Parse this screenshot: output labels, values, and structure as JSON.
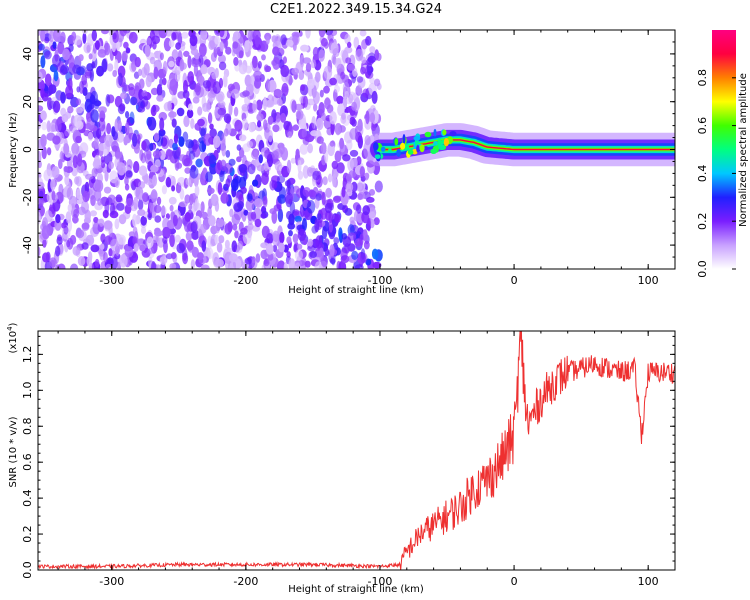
{
  "title": "C2E1.2022.349.15.34.G24",
  "chart_data": [
    {
      "type": "heatmap",
      "xlabel": "Height of straight line (km)",
      "ylabel": "Frequency (Hz)",
      "xlim": [
        -355,
        120
      ],
      "ylim": [
        -50,
        50
      ],
      "x_ticks": [
        -300,
        -200,
        -100,
        0,
        100
      ],
      "y_ticks": [
        -40,
        -20,
        0,
        20,
        40
      ],
      "x_tick_labels": [
        "-300",
        "-200",
        "-100",
        "0",
        "100"
      ],
      "y_tick_labels": [
        "-40",
        "-20",
        "0",
        "20",
        "40"
      ],
      "grid": false,
      "colorbar": {
        "label": "Normalized spectral amplitude",
        "range": [
          0,
          1
        ],
        "ticks": [
          0.0,
          0.2,
          0.4,
          0.6,
          0.8
        ],
        "tick_labels": [
          "0.0",
          "0.2",
          "0.4",
          "0.6",
          "0.8"
        ],
        "colors": [
          "#ffffff",
          "#c8a0ff",
          "#7a1eff",
          "#2020ff",
          "#00c8ff",
          "#00ff80",
          "#40ff00",
          "#ffff00",
          "#ff8000",
          "#ff0040",
          "#ff0080"
        ]
      },
      "noise_region": {
        "x_range": [
          -355,
          -100
        ],
        "dominant_amplitude": 0.2,
        "diagonal_band_from": [
          -300,
          20
        ],
        "diagonal_band_to": [
          -120,
          -40
        ]
      },
      "signal_track": {
        "x": [
          -100,
          -90,
          -80,
          -70,
          -60,
          -50,
          -40,
          -30,
          -20,
          -10,
          0,
          20,
          40,
          60,
          80,
          100,
          120
        ],
        "y": [
          0,
          0,
          1,
          2,
          3,
          4,
          4,
          3,
          1,
          0.5,
          0,
          0,
          0,
          0,
          0,
          0,
          0
        ],
        "peak_amplitude": 0.9
      }
    },
    {
      "type": "line",
      "xlabel": "Height of straight line (km)",
      "ylabel": "SNR (10 * v/v)",
      "y_multiplier": "(x10",
      "y_multiplier_exp": "4",
      "xlim": [
        -355,
        120
      ],
      "ylim": [
        0,
        1.33
      ],
      "x_ticks": [
        -300,
        -200,
        -100,
        0,
        100
      ],
      "y_ticks": [
        0.0,
        0.2,
        0.4,
        0.6,
        0.8,
        1.0,
        1.2
      ],
      "x_tick_labels": [
        "-300",
        "-200",
        "-100",
        "0",
        "100"
      ],
      "y_tick_labels": [
        "0.0",
        "0.2",
        "0.4",
        "0.6",
        "0.8",
        "1.0",
        "1.2"
      ],
      "grid": false,
      "series": [
        {
          "color": "#ee3030",
          "x": [
            -355,
            -300,
            -250,
            -200,
            -150,
            -100,
            -85,
            -80,
            -70,
            -60,
            -50,
            -40,
            -30,
            -20,
            -10,
            0,
            5,
            10,
            20,
            30,
            40,
            50,
            60,
            70,
            80,
            90,
            95,
            100,
            110,
            120
          ],
          "values": [
            0.02,
            0.02,
            0.03,
            0.03,
            0.03,
            0.02,
            0.03,
            0.1,
            0.2,
            0.25,
            0.3,
            0.35,
            0.45,
            0.5,
            0.6,
            0.75,
            1.28,
            0.8,
            0.95,
            1.05,
            1.1,
            1.12,
            1.15,
            1.12,
            1.1,
            1.12,
            0.75,
            1.1,
            1.1,
            1.1
          ]
        }
      ]
    }
  ]
}
